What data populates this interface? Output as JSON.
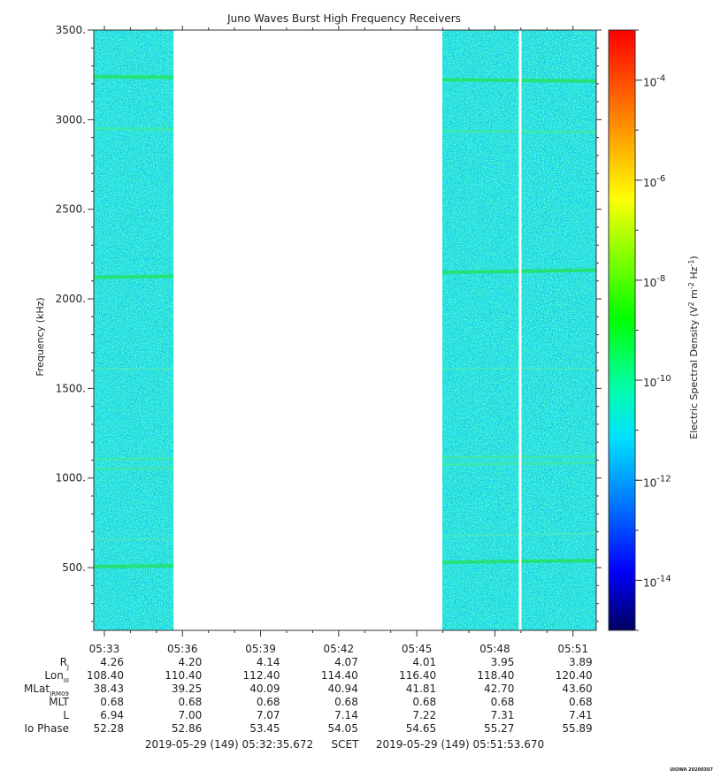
{
  "chart_data": {
    "type": "heatmap",
    "title": "Juno Waves Burst High Frequency Receivers",
    "ylabel": "Frequency (kHz)",
    "ylim": [
      150,
      3500
    ],
    "y_ticks": [
      500,
      1000,
      1500,
      2000,
      2500,
      3000,
      3500
    ],
    "y_tick_labels": [
      "500.",
      "1000.",
      "1500.",
      "2000.",
      "2500.",
      "3000.",
      "3500."
    ],
    "x_range_minutes": [
      32.593,
      51.894
    ],
    "x_ticks_minutes": [
      33,
      36,
      39,
      42,
      45,
      48,
      51
    ],
    "x_tick_labels": [
      "05:33",
      "05:36",
      "05:39",
      "05:42",
      "05:45",
      "05:48",
      "05:51"
    ],
    "data_gaps_minutes": [
      [
        35.66,
        45.98
      ],
      [
        48.92,
        49.02
      ]
    ],
    "emission_bands_kHz": [
      {
        "start": 505,
        "end": 540,
        "strength": "strong"
      },
      {
        "start": 655,
        "end": 690,
        "strength": "weak"
      },
      {
        "start": 1050,
        "end": 1085,
        "strength": "medium"
      },
      {
        "start": 1105,
        "end": 1120,
        "strength": "medium"
      },
      {
        "start": 1610,
        "end": 1610,
        "strength": "weak"
      },
      {
        "start": 2120,
        "end": 2160,
        "strength": "strong"
      },
      {
        "start": 2950,
        "end": 2930,
        "strength": "medium"
      },
      {
        "start": 3240,
        "end": 3215,
        "strength": "strong"
      }
    ],
    "colorbar": {
      "label": "Electric Spectral Density (V² m⁻² Hz⁻¹)",
      "label_main": "Electric Spectral Density (V",
      "label_sup1": "2",
      "label_mid": " m",
      "label_sup2": "-2",
      "label_mid2": " Hz",
      "label_sup3": "-1",
      "label_end": ")",
      "scale": "log",
      "range_exponents": [
        -15,
        -3
      ],
      "ticks": [
        {
          "base": "10",
          "exp": "-4",
          "value": -4
        },
        {
          "base": "10",
          "exp": "-6",
          "value": -6
        },
        {
          "base": "10",
          "exp": "-8",
          "value": -8
        },
        {
          "base": "10",
          "exp": "-10",
          "value": -10
        },
        {
          "base": "10",
          "exp": "-12",
          "value": -12
        },
        {
          "base": "10",
          "exp": "-14",
          "value": -14
        }
      ],
      "colors": [
        "#000080",
        "#0000ff",
        "#0080ff",
        "#00ffff",
        "#00ff80",
        "#00ff00",
        "#80ff00",
        "#ffff00",
        "#ff8000",
        "#ff0000"
      ]
    },
    "ephemeris": [
      {
        "name": "R",
        "sub": "J",
        "values": [
          "4.26",
          "4.20",
          "4.14",
          "4.07",
          "4.01",
          "3.95",
          "3.89"
        ]
      },
      {
        "name": "Lon",
        "sub": "III",
        "values": [
          "108.40",
          "110.40",
          "112.40",
          "114.40",
          "116.40",
          "118.40",
          "120.40"
        ]
      },
      {
        "name": "MLat",
        "sub": "JRM09",
        "values": [
          "38.43",
          "39.25",
          "40.09",
          "40.94",
          "41.81",
          "42.70",
          "43.60"
        ]
      },
      {
        "name": "MLT",
        "sub": "",
        "values": [
          "0.68",
          "0.68",
          "0.68",
          "0.68",
          "0.68",
          "0.68",
          "0.68"
        ]
      },
      {
        "name": "L",
        "sub": "",
        "values": [
          "6.94",
          "7.00",
          "7.07",
          "7.14",
          "7.22",
          "7.31",
          "7.41"
        ]
      },
      {
        "name": "Io Phase",
        "sub": "",
        "values": [
          "52.28",
          "52.86",
          "53.45",
          "54.05",
          "54.65",
          "55.27",
          "55.89"
        ]
      }
    ],
    "time_start": "2019-05-29 (149) 05:32:35.672",
    "time_system": "SCET",
    "time_end": "2019-05-29 (149) 05:51:53.670",
    "stamp": "UIOWA 20200307"
  }
}
